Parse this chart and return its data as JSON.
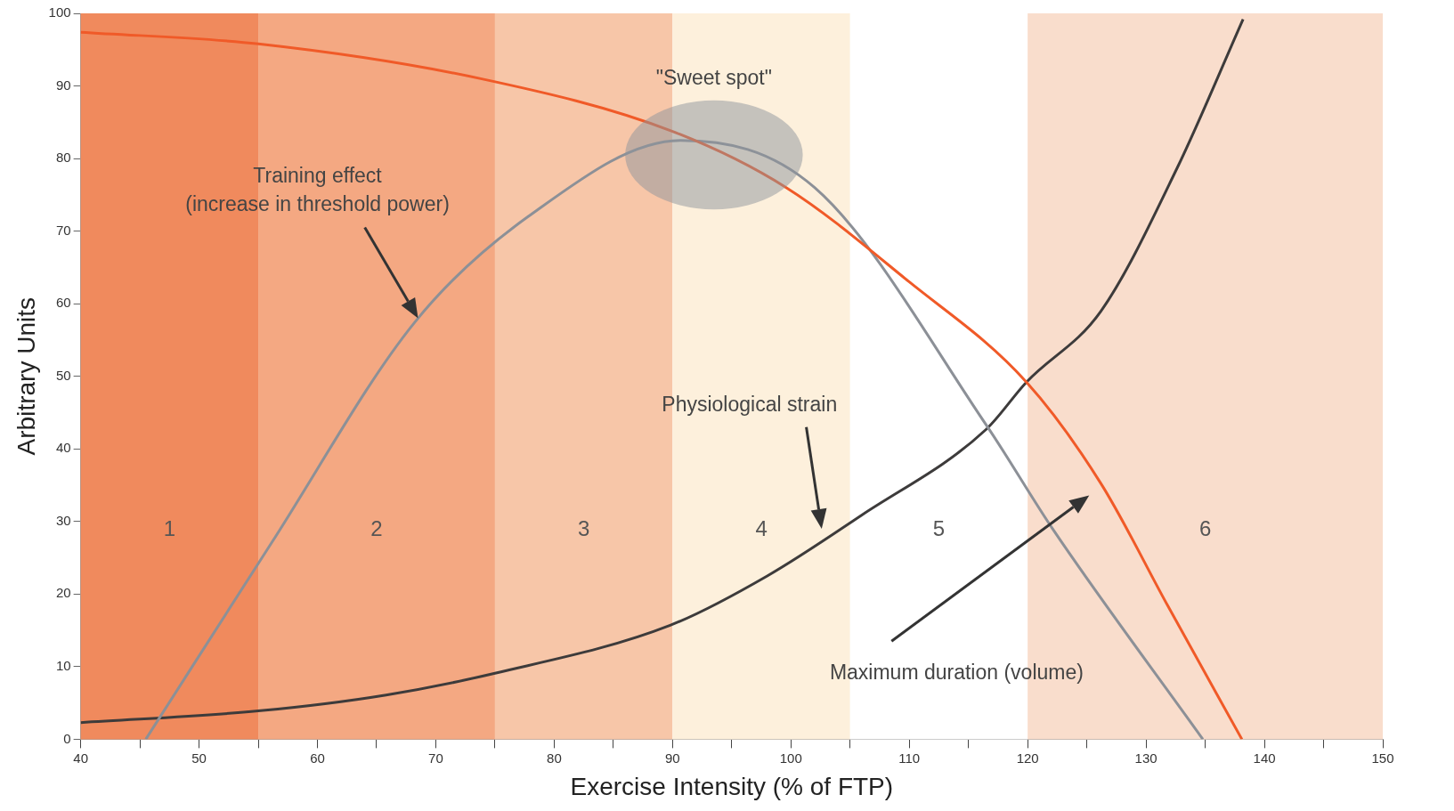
{
  "chart_data": {
    "type": "line",
    "xlabel": "Exercise Intensity (% of FTP)",
    "ylabel": "Arbitrary Units",
    "xlim": [
      40,
      150
    ],
    "ylim": [
      0,
      100
    ],
    "xticks": [
      40,
      {
        "value": 45,
        "label": null
      },
      50,
      {
        "value": 55,
        "label": null
      },
      60,
      {
        "value": 65,
        "label": null
      },
      70,
      {
        "value": 75,
        "label": null
      },
      80,
      {
        "value": 85,
        "label": null
      },
      90,
      {
        "value": 95,
        "label": null
      },
      100,
      {
        "value": 105,
        "label": null
      },
      110,
      {
        "value": 115,
        "label": null
      },
      120,
      {
        "value": 125,
        "label": null
      },
      130,
      {
        "value": 135,
        "label": null
      },
      140,
      {
        "value": 145,
        "label": null
      },
      150
    ],
    "yticks": [
      0,
      10,
      20,
      30,
      40,
      50,
      60,
      70,
      80,
      90,
      100
    ],
    "grid": false,
    "legend": false,
    "marker": "none",
    "line_style": "solid",
    "series": [
      {
        "color": "#f05a28",
        "x": [
          40,
          55,
          73.8,
          89.9,
          99.6,
          110,
          119.9,
          126.2,
          131.8,
          138.1
        ],
        "values": [
          97.4,
          95.8,
          91,
          83.8,
          76,
          63,
          49.2,
          35.2,
          18.5,
          0
        ]
      },
      {
        "color": "#8c9097",
        "x": [
          45.5,
          56.1,
          68.2,
          77.8,
          90.7,
          102,
          116.5,
          122.1,
          134.8
        ],
        "values": [
          0,
          27,
          57.4,
          72,
          82.5,
          76,
          43.3,
          29,
          0
        ]
      },
      {
        "color": "#3d3b3b",
        "x": [
          40,
          55,
          65.8,
          75,
          89.8,
          98,
          106,
          116.5,
          119.9,
          126.2,
          132.6,
          138.2
        ],
        "values": [
          2.3,
          3.9,
          6.1,
          9.1,
          15.7,
          22.5,
          30.9,
          42.7,
          49.2,
          59,
          78.6,
          99.2
        ]
      }
    ],
    "bands": [
      {
        "axis": "x",
        "from": 40,
        "to": 55,
        "label": "1",
        "color": "#f08a5d"
      },
      {
        "axis": "x",
        "from": 55,
        "to": 75,
        "label": "2",
        "color": "#f4a882"
      },
      {
        "axis": "x",
        "from": 75,
        "to": 90,
        "label": "3",
        "color": "#f7c6a8"
      },
      {
        "axis": "x",
        "from": 90,
        "to": 105,
        "label": "4",
        "color": "#fdf0dc"
      },
      {
        "axis": "x",
        "from": 105,
        "to": 120,
        "label": "5",
        "color": "#ffffff"
      },
      {
        "axis": "x",
        "from": 120,
        "to": 150,
        "label": "6",
        "color": "#f9ddcc"
      }
    ],
    "annotations": [
      "\"Sweet spot\"",
      "Training effect\n(increase in threshold power)",
      "Physiological strain",
      "Maximum duration (volume)"
    ]
  }
}
